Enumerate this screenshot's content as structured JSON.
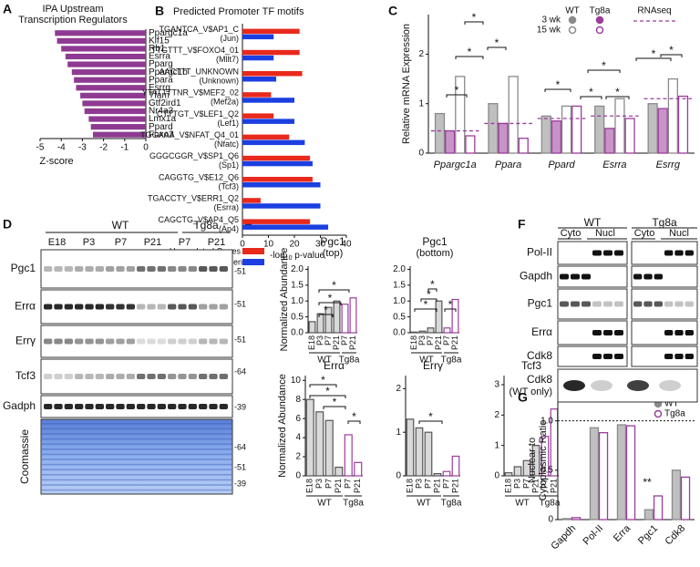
{
  "panels": [
    "A",
    "B",
    "C",
    "D",
    "E",
    "F",
    "G"
  ],
  "chart_data": [
    {
      "type": "barh",
      "title": [
        "IPA Upstream",
        "Transcription Regulators"
      ],
      "categories": [
        "Ppargc1a",
        "Klf15",
        "Rb1",
        "Esrra",
        "Pparg",
        "Ppargc1b",
        "Ppara",
        "Esrrg",
        "Tfam",
        "Gtf2ird1",
        "Nr4a3",
        "Lmx1a",
        "Ppard",
        "Foxo3"
      ],
      "values": [
        -4.3,
        -4.2,
        -4.0,
        -3.8,
        -3.7,
        -3.5,
        -3.4,
        -3.3,
        -3.1,
        -3.0,
        -2.9,
        -2.7,
        -2.6,
        -2.5
      ],
      "color": "#8e3a92",
      "xlim": [
        -5,
        0
      ],
      "xticks": [
        -5,
        -4,
        -3,
        -2,
        -1,
        0
      ],
      "xlabel": "Z-score"
    },
    {
      "type": "barh",
      "title": "Predicted Promoter TF motifs",
      "categories": [
        "TGANTCA_V$AP1_C",
        "TTGTTT_V$FOXO4_01",
        "AACTTT_UNKNOWN",
        "YTATTTTNR_V$MEF2_02",
        "CTTTGT_V$LEF1_Q2",
        "TGGAAA_V$NFAT_Q4_01",
        "GGGCGGR_V$SP1_Q6",
        "CAGGTG_V$E12_Q6",
        "TGACCTY_V$ERR1_Q2",
        "CAGCTG_V$AP4_Q5"
      ],
      "category_sublabels": [
        "(Jun)",
        "(Mllt7)",
        "(Unknown)",
        "(Mef2a)",
        "(Lef1)",
        "(Nfatc)",
        "(Sp1)",
        "(Tcf3)",
        "(Esrra)",
        "(Ap4)"
      ],
      "series": [
        {
          "name": "Upregulated Genes",
          "color": "#e8291c",
          "values": [
            22,
            22,
            23,
            11,
            12,
            18,
            26,
            27,
            7,
            26
          ]
        },
        {
          "name": "Downregulated Genes",
          "color": "#1b3fe0",
          "values": [
            12,
            12,
            13,
            20,
            20,
            24,
            27,
            30,
            30,
            33
          ]
        }
      ],
      "xlim": [
        0,
        40
      ],
      "xticks": [
        0,
        10,
        20,
        30,
        40
      ],
      "xlabel": [
        "-log",
        "10",
        " p-value"
      ]
    },
    {
      "type": "bar",
      "ylabel": "Relative mRNA Expression",
      "categories": [
        "Ppargc1a",
        "Ppara",
        "Ppard",
        "Esrra",
        "Esrrg"
      ],
      "series": [
        {
          "color": "#8a8a8a",
          "filled": true,
          "values": [
            0.8,
            1.0,
            0.75,
            0.95,
            1.0
          ]
        },
        {
          "color": "#9b3c9b",
          "filled": true,
          "values": [
            0.45,
            0.6,
            0.65,
            0.5,
            0.9
          ]
        },
        {
          "color": "#8a8a8a",
          "filled": false,
          "values": [
            1.55,
            1.55,
            0.95,
            1.1,
            1.5
          ]
        },
        {
          "color": "#9b3c9b",
          "filled": false,
          "values": [
            0.35,
            0.3,
            0.95,
            0.7,
            1.15
          ]
        }
      ],
      "reference": {
        "name": "RNAseq",
        "color": "#9b3c9b",
        "values": [
          0.45,
          0.6,
          0.7,
          0.75,
          1.1
        ]
      },
      "legend": {
        "columns": [
          "WT",
          "Tg8a"
        ],
        "rows": [
          "3 wk",
          "15 wk"
        ]
      },
      "ylim": [
        0,
        2.8
      ],
      "yticks": [
        0,
        1,
        2
      ],
      "annotations": [
        "*",
        "*",
        "*",
        "*",
        "*",
        "*",
        "*",
        "*",
        "*",
        "*"
      ]
    },
    {
      "type": "bar",
      "title": "Pgc1",
      "subtitle": "(top)",
      "ylabel": "Normalized Abundance",
      "categories": [
        "E18",
        "P3",
        "P7",
        "P21",
        "P7",
        "P21"
      ],
      "groups": [
        "WT",
        "Tg8a"
      ],
      "colors": [
        "#bdbdbd",
        "#bdbdbd",
        "#bdbdbd",
        "#bdbdbd",
        "#9b3c9b",
        "#9b3c9b"
      ],
      "values": [
        0.35,
        0.6,
        0.8,
        1.0,
        0.9,
        1.1
      ],
      "ylim": [
        0,
        2.1
      ],
      "yticks": [
        {
          "value": 0,
          "label": "0.0"
        },
        0.5,
        {
          "value": 1,
          "label": "1.0"
        },
        1.5,
        {
          "value": 2,
          "label": "2.0"
        }
      ],
      "annotations": [
        "*",
        "*",
        "*"
      ]
    },
    {
      "type": "bar",
      "title": "Pgc1",
      "subtitle": "(bottom)",
      "categories": [
        "E18",
        "P3",
        "P7",
        "P21",
        "P7",
        "P21"
      ],
      "groups": [
        "WT",
        "Tg8a"
      ],
      "colors": [
        "#bdbdbd",
        "#bdbdbd",
        "#bdbdbd",
        "#bdbdbd",
        "#9b3c9b",
        "#9b3c9b"
      ],
      "values": [
        0.02,
        0.05,
        0.15,
        1.0,
        0.15,
        1.05
      ],
      "ylim": [
        0,
        2.1
      ],
      "yticks": [
        {
          "value": 0,
          "label": "0.0"
        },
        0.5,
        {
          "value": 1,
          "label": "1.0"
        },
        1.5,
        {
          "value": 2,
          "label": "2.0"
        }
      ],
      "annotations": [
        "*",
        "*",
        "*",
        "*"
      ]
    },
    {
      "type": "bar",
      "title": "Errα",
      "ylabel": "Normalized Abundance",
      "categories": [
        "E18",
        "P3",
        "P7",
        "P21",
        "P7",
        "P21"
      ],
      "groups": [
        "WT",
        "Tg8a"
      ],
      "colors": [
        "#bdbdbd",
        "#bdbdbd",
        "#bdbdbd",
        "#bdbdbd",
        "#9b3c9b",
        "#9b3c9b"
      ],
      "values": [
        8.0,
        6.7,
        5.8,
        0.9,
        4.3,
        1.4
      ],
      "ylim": [
        0,
        10.5
      ],
      "yticks": [
        0,
        2,
        4,
        6,
        8,
        10
      ],
      "annotations": [
        "*",
        "*",
        "*",
        "*"
      ]
    },
    {
      "type": "bar",
      "title": "Errγ",
      "categories": [
        "E18",
        "P3",
        "P7",
        "P21",
        "P7",
        "P21"
      ],
      "groups": [
        "WT",
        "Tg8a"
      ],
      "colors": [
        "#bdbdbd",
        "#bdbdbd",
        "#bdbdbd",
        "#bdbdbd",
        "#9b3c9b",
        "#9b3c9b"
      ],
      "values": [
        1.3,
        1.1,
        1.0,
        0.05,
        0.1,
        0.45
      ],
      "ylim": [
        0,
        2.3
      ],
      "yticks": [
        0,
        1,
        2
      ],
      "annotations": [
        "*"
      ]
    },
    {
      "type": "bar",
      "title": "Tcf3",
      "categories": [
        "E18",
        "P3",
        "P7",
        "P21",
        "P7",
        "P21"
      ],
      "groups": [
        "WT",
        "Tg8a"
      ],
      "colors": [
        "#bdbdbd",
        "#bdbdbd",
        "#bdbdbd",
        "#bdbdbd",
        "#9b3c9b",
        "#9b3c9b"
      ],
      "values": [
        0.1,
        0.3,
        0.5,
        1.0,
        1.3,
        2.2
      ],
      "ylim": [
        0,
        3.3
      ],
      "yticks": [
        0,
        1,
        2,
        3
      ]
    },
    {
      "type": "bar",
      "ylabel": [
        "Nuclear to",
        "Cytoplasmic Ratio"
      ],
      "categories": [
        "Gapdh",
        "Pol-II",
        "Erra",
        "Pgc1",
        "Cdk8"
      ],
      "series": [
        {
          "name": "WT",
          "color": "#8a8a8a",
          "filled": true,
          "values": [
            0.01,
            0.93,
            0.96,
            0.1,
            0.5
          ]
        },
        {
          "name": "Tg8a",
          "color": "#9b3c9b",
          "filled": false,
          "values": [
            0.02,
            0.88,
            0.95,
            0.24,
            0.43
          ]
        }
      ],
      "reference_line": 1,
      "ylim": [
        0,
        1.2
      ],
      "yticks": [
        0,
        0.5,
        {
          "value": 1,
          "label": "1.0"
        }
      ],
      "annotations": [
        "**"
      ]
    }
  ],
  "blots": {
    "D": {
      "groups": [
        "WT",
        "Tg8a"
      ],
      "lanes": [
        "E18",
        "P3",
        "P7",
        "P21",
        "P7",
        "P21"
      ],
      "rows": [
        "Pgc1",
        "Errα",
        "Errγ",
        "Tcf3",
        "Gadph",
        "Coomassie"
      ],
      "markers": [
        "-51",
        "-51",
        "-51",
        "-64",
        "-39",
        "-64",
        "-51",
        "-39"
      ]
    },
    "F": {
      "groups": [
        "WT",
        "Tg8a"
      ],
      "fractions": [
        "Cyto",
        "Nucl",
        "Cyto",
        "Nucl"
      ],
      "rows": [
        "Pol-II",
        "Gapdh",
        "Pgc1",
        "Errα",
        "Cdk8"
      ],
      "last_row": [
        "Cdk8",
        "(WT only)"
      ]
    }
  }
}
